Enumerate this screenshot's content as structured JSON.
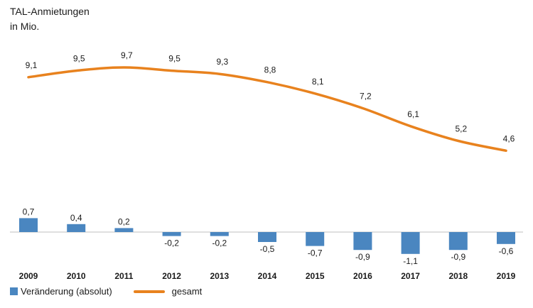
{
  "chart_data": {
    "type": "bar+line",
    "title": "TAL-Anmietungen",
    "subtitle": "in Mio.",
    "categories": [
      "2009",
      "2010",
      "2011",
      "2012",
      "2013",
      "2014",
      "2015",
      "2016",
      "2017",
      "2018",
      "2019"
    ],
    "series": [
      {
        "name": "Veränderung (absolut)",
        "type": "bar",
        "color": "#4a86c0",
        "values": [
          0.7,
          0.4,
          0.2,
          -0.2,
          -0.2,
          -0.5,
          -0.7,
          -0.9,
          -1.1,
          -0.9,
          -0.6
        ],
        "labels": [
          "0,7",
          "0,4",
          "0,2",
          "-0,2",
          "-0,2",
          "-0,5",
          "-0,7",
          "-0,9",
          "-1,1",
          "-0,9",
          "-0,6"
        ]
      },
      {
        "name": "gesamt",
        "type": "line",
        "color": "#e8821e",
        "values": [
          9.1,
          9.5,
          9.7,
          9.5,
          9.3,
          8.8,
          8.1,
          7.2,
          6.1,
          5.2,
          4.6
        ],
        "labels": [
          "9,1",
          "9,5",
          "9,7",
          "9,5",
          "9,3",
          "8,8",
          "8,1",
          "7,2",
          "6,1",
          "5,2",
          "4,6"
        ]
      }
    ],
    "legend_position": "bottom-left",
    "grid": false
  }
}
